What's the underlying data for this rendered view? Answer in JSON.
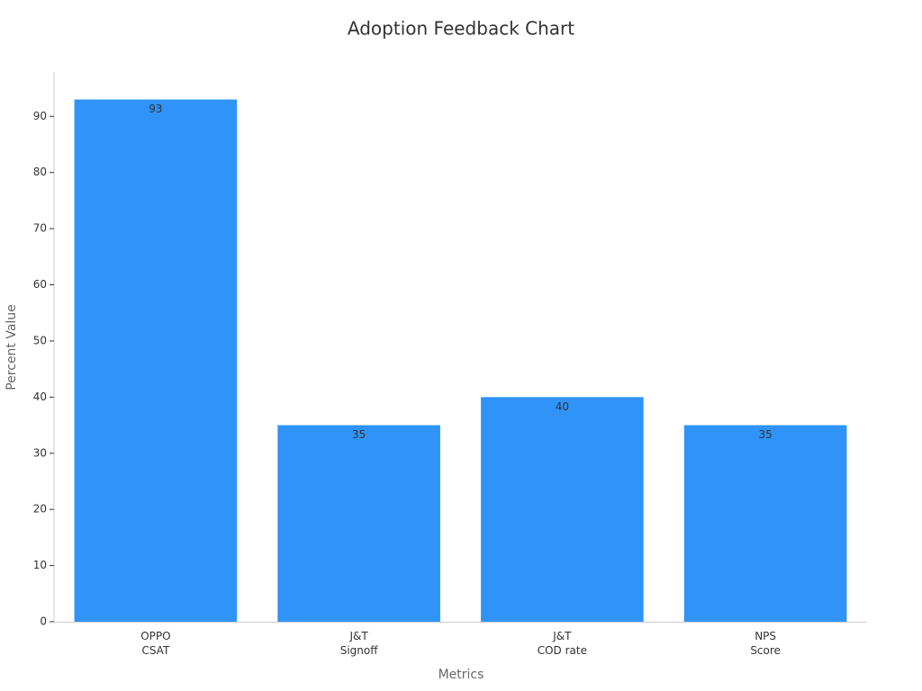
{
  "chart_data": {
    "type": "bar",
    "title": "Adoption Feedback Chart",
    "x_label": "Metrics",
    "y_label": "Percent Value",
    "categories": [
      "OPPO\nCSAT",
      "J&T\nSignoff",
      "J&T\nCOD rate",
      "NPS\nScore"
    ],
    "values": [
      93,
      35,
      40,
      35
    ],
    "color": "#2f93f8",
    "ylim": [
      0,
      97.9
    ],
    "yticks": [
      0,
      10,
      20,
      30,
      40,
      50,
      60,
      70,
      80,
      90
    ],
    "grid": false
  }
}
